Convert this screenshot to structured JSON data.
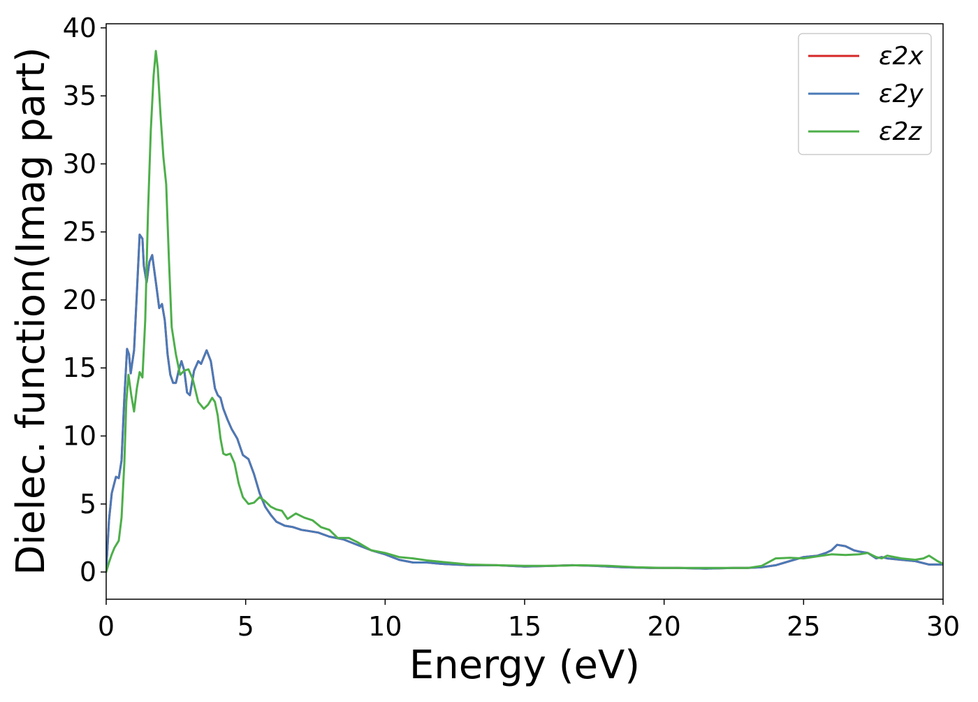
{
  "chart_data": {
    "type": "line",
    "title": "",
    "xlabel": "Energy (eV)",
    "ylabel": "Dielec. function(Imag part)",
    "xlim": [
      0,
      30
    ],
    "ylim": [
      -2,
      40.3
    ],
    "xticks": [
      0,
      5,
      10,
      15,
      20,
      25,
      30
    ],
    "yticks": [
      0,
      5,
      10,
      15,
      20,
      25,
      30,
      35,
      40
    ],
    "grid": false,
    "legend_position": "top-right",
    "series": [
      {
        "name": "ε2x",
        "color": "#d62728",
        "x": [
          0,
          0.1,
          0.2,
          0.35,
          0.45,
          0.55,
          0.65,
          0.75,
          0.82,
          0.88,
          1.0,
          1.1,
          1.2,
          1.3,
          1.35,
          1.45,
          1.55,
          1.65,
          1.8,
          1.9,
          2.0,
          2.1,
          2.2,
          2.3,
          2.4,
          2.5,
          2.6,
          2.7,
          2.8,
          2.9,
          3.0,
          3.15,
          3.3,
          3.4,
          3.5,
          3.6,
          3.75,
          3.9,
          4.0,
          4.1,
          4.2,
          4.35,
          4.5,
          4.7,
          4.9,
          5.1,
          5.3,
          5.5,
          5.7,
          5.9,
          6.1,
          6.4,
          6.7,
          7.0,
          7.3,
          7.6,
          8.0,
          8.5,
          9.0,
          9.5,
          10.0,
          10.5,
          11.0,
          11.5,
          12.0,
          13.0,
          14.0,
          15.0,
          16.0,
          16.7,
          17.5,
          18.5,
          19.5,
          20.5,
          21.5,
          22.5,
          23.0,
          23.5,
          24.0,
          24.5,
          25.0,
          25.5,
          25.8,
          26.0,
          26.2,
          26.5,
          26.8,
          27.0,
          27.3,
          27.6,
          27.8,
          28.0,
          28.5,
          29.0,
          29.5,
          30.0
        ],
        "values": [
          0.1,
          3.8,
          5.8,
          7.0,
          6.9,
          8.2,
          12.8,
          16.4,
          16.0,
          14.6,
          16.3,
          20.5,
          24.8,
          24.5,
          22.5,
          21.3,
          22.8,
          23.3,
          21.0,
          19.4,
          19.7,
          18.5,
          16.0,
          14.5,
          13.9,
          13.9,
          14.8,
          15.5,
          14.8,
          13.2,
          13.0,
          14.8,
          15.5,
          15.3,
          15.8,
          16.3,
          15.5,
          13.5,
          13.0,
          12.8,
          12.0,
          11.2,
          10.5,
          9.8,
          8.6,
          8.3,
          7.2,
          5.8,
          4.8,
          4.2,
          3.7,
          3.4,
          3.3,
          3.1,
          3.0,
          2.9,
          2.6,
          2.4,
          2.0,
          1.6,
          1.3,
          0.9,
          0.7,
          0.7,
          0.6,
          0.5,
          0.5,
          0.4,
          0.45,
          0.5,
          0.45,
          0.35,
          0.3,
          0.3,
          0.25,
          0.3,
          0.3,
          0.35,
          0.5,
          0.8,
          1.1,
          1.2,
          1.4,
          1.6,
          2.0,
          1.9,
          1.6,
          1.5,
          1.4,
          1.0,
          1.1,
          1.0,
          0.9,
          0.8,
          0.55,
          0.55
        ]
      },
      {
        "name": "ε2y",
        "color": "#4a7ab7",
        "x": [
          0,
          0.1,
          0.2,
          0.35,
          0.45,
          0.55,
          0.65,
          0.75,
          0.82,
          0.88,
          1.0,
          1.1,
          1.2,
          1.3,
          1.35,
          1.45,
          1.55,
          1.65,
          1.8,
          1.9,
          2.0,
          2.1,
          2.2,
          2.3,
          2.4,
          2.5,
          2.6,
          2.7,
          2.8,
          2.9,
          3.0,
          3.15,
          3.3,
          3.4,
          3.5,
          3.6,
          3.75,
          3.9,
          4.0,
          4.1,
          4.2,
          4.35,
          4.5,
          4.7,
          4.9,
          5.1,
          5.3,
          5.5,
          5.7,
          5.9,
          6.1,
          6.4,
          6.7,
          7.0,
          7.3,
          7.6,
          8.0,
          8.5,
          9.0,
          9.5,
          10.0,
          10.5,
          11.0,
          11.5,
          12.0,
          13.0,
          14.0,
          15.0,
          16.0,
          16.7,
          17.5,
          18.5,
          19.5,
          20.5,
          21.5,
          22.5,
          23.0,
          23.5,
          24.0,
          24.5,
          25.0,
          25.5,
          25.8,
          26.0,
          26.2,
          26.5,
          26.8,
          27.0,
          27.3,
          27.6,
          27.8,
          28.0,
          28.5,
          29.0,
          29.5,
          30.0
        ],
        "values": [
          0.1,
          3.8,
          5.8,
          7.0,
          6.9,
          8.2,
          12.8,
          16.4,
          16.0,
          14.6,
          16.3,
          20.5,
          24.8,
          24.5,
          22.5,
          21.3,
          22.8,
          23.3,
          21.0,
          19.4,
          19.7,
          18.5,
          16.0,
          14.5,
          13.9,
          13.9,
          14.8,
          15.5,
          14.8,
          13.2,
          13.0,
          14.8,
          15.5,
          15.3,
          15.8,
          16.3,
          15.5,
          13.5,
          13.0,
          12.8,
          12.0,
          11.2,
          10.5,
          9.8,
          8.6,
          8.3,
          7.2,
          5.8,
          4.8,
          4.2,
          3.7,
          3.4,
          3.3,
          3.1,
          3.0,
          2.9,
          2.6,
          2.4,
          2.0,
          1.6,
          1.3,
          0.9,
          0.7,
          0.7,
          0.6,
          0.5,
          0.5,
          0.4,
          0.45,
          0.5,
          0.45,
          0.35,
          0.3,
          0.3,
          0.25,
          0.3,
          0.3,
          0.35,
          0.5,
          0.8,
          1.1,
          1.2,
          1.4,
          1.6,
          2.0,
          1.9,
          1.6,
          1.5,
          1.4,
          1.0,
          1.1,
          1.0,
          0.9,
          0.8,
          0.55,
          0.55
        ]
      },
      {
        "name": "ε2z",
        "color": "#4daf4a",
        "x": [
          0,
          0.1,
          0.2,
          0.3,
          0.45,
          0.55,
          0.65,
          0.72,
          0.8,
          0.9,
          1.0,
          1.1,
          1.2,
          1.3,
          1.4,
          1.5,
          1.6,
          1.7,
          1.78,
          1.85,
          1.95,
          2.05,
          2.15,
          2.25,
          2.35,
          2.5,
          2.65,
          2.8,
          2.95,
          3.1,
          3.3,
          3.5,
          3.65,
          3.8,
          3.9,
          4.0,
          4.1,
          4.2,
          4.3,
          4.45,
          4.6,
          4.75,
          4.9,
          5.1,
          5.3,
          5.5,
          5.7,
          5.9,
          6.1,
          6.3,
          6.5,
          6.8,
          7.1,
          7.4,
          7.7,
          8.0,
          8.3,
          8.7,
          9.0,
          9.5,
          10.0,
          10.5,
          11.0,
          11.5,
          12.0,
          13.0,
          14.0,
          15.0,
          16.0,
          17.0,
          18.0,
          19.0,
          20.0,
          21.0,
          22.0,
          23.0,
          23.5,
          24.0,
          24.5,
          25.0,
          25.5,
          26.0,
          26.5,
          27.0,
          27.3,
          27.6,
          27.8,
          28.0,
          28.5,
          29.0,
          29.3,
          29.5,
          29.8,
          30.0
        ],
        "values": [
          0.0,
          0.7,
          1.3,
          1.8,
          2.3,
          4.0,
          8.0,
          12.5,
          14.5,
          13.0,
          11.8,
          13.5,
          14.7,
          14.3,
          18.5,
          26.5,
          32.5,
          36.5,
          38.3,
          37.0,
          33.5,
          30.5,
          28.5,
          23.0,
          18.0,
          16.0,
          14.5,
          14.8,
          14.9,
          14.2,
          12.5,
          12.0,
          12.3,
          12.8,
          12.5,
          11.5,
          9.8,
          8.7,
          8.6,
          8.7,
          8.0,
          6.5,
          5.5,
          5.0,
          5.1,
          5.5,
          5.2,
          4.8,
          4.6,
          4.5,
          3.9,
          4.3,
          4.0,
          3.8,
          3.3,
          3.1,
          2.5,
          2.5,
          2.2,
          1.6,
          1.4,
          1.1,
          1.0,
          0.85,
          0.75,
          0.55,
          0.5,
          0.45,
          0.45,
          0.5,
          0.45,
          0.35,
          0.3,
          0.3,
          0.3,
          0.3,
          0.45,
          1.0,
          1.05,
          1.0,
          1.15,
          1.3,
          1.25,
          1.3,
          1.4,
          1.1,
          1.0,
          1.2,
          1.0,
          0.9,
          1.0,
          1.2,
          0.8,
          0.6
        ]
      }
    ]
  }
}
